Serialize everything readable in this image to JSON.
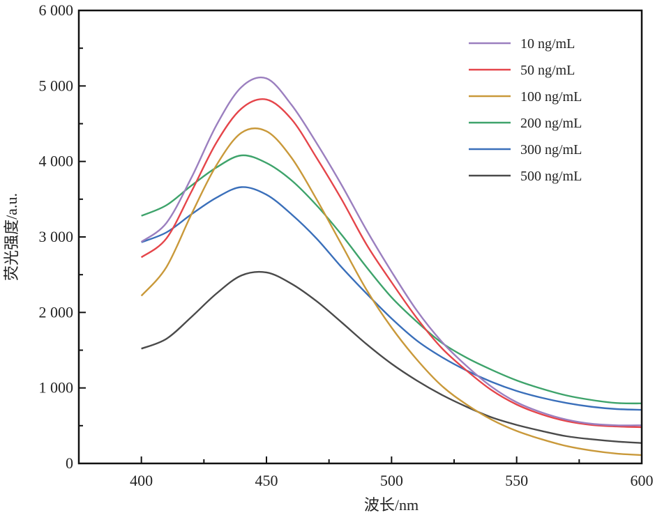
{
  "chart_data": {
    "type": "line",
    "title": "",
    "xlabel": "波长/nm",
    "ylabel": "荧光强度/a.u.",
    "xlim": [
      375,
      600
    ],
    "ylim": [
      0,
      6000
    ],
    "xticks": [
      400,
      450,
      500,
      550,
      600
    ],
    "yticks": [
      0,
      1000,
      2000,
      3000,
      4000,
      5000,
      6000
    ],
    "ytick_labels": [
      "0",
      "1 000",
      "2 000",
      "3 000",
      "4 000",
      "5 000",
      "6 000"
    ],
    "grid": false,
    "legend_position": "top-right",
    "x": [
      400,
      410,
      420,
      430,
      440,
      450,
      460,
      470,
      480,
      490,
      500,
      510,
      520,
      530,
      540,
      550,
      560,
      570,
      580,
      590,
      600
    ],
    "series": [
      {
        "name": "10 ng/mL",
        "color": "#9b7fbf",
        "values": [
          2935,
          3185,
          3785,
          4480,
          4985,
          5100,
          4750,
          4245,
          3690,
          3090,
          2540,
          2030,
          1615,
          1290,
          1015,
          810,
          675,
          580,
          525,
          505,
          505
        ]
      },
      {
        "name": "50 ng/mL",
        "color": "#e5454a",
        "values": [
          2730,
          2980,
          3600,
          4250,
          4700,
          4820,
          4560,
          4050,
          3500,
          2900,
          2400,
          1930,
          1530,
          1230,
          970,
          780,
          650,
          560,
          510,
          490,
          480
        ]
      },
      {
        "name": "100 ng/mL",
        "color": "#c9993a",
        "values": [
          2220,
          2600,
          3300,
          3950,
          4380,
          4400,
          4050,
          3500,
          2900,
          2300,
          1800,
          1380,
          1030,
          780,
          580,
          430,
          320,
          230,
          170,
          130,
          110
        ]
      },
      {
        "name": "200 ng/mL",
        "color": "#3ea36b",
        "values": [
          3280,
          3420,
          3680,
          3920,
          4080,
          3980,
          3750,
          3420,
          3030,
          2600,
          2200,
          1880,
          1600,
          1400,
          1240,
          1100,
          990,
          900,
          840,
          800,
          795
        ]
      },
      {
        "name": "300 ng/mL",
        "color": "#3a6fba",
        "values": [
          2930,
          3060,
          3300,
          3520,
          3660,
          3560,
          3300,
          2980,
          2600,
          2250,
          1920,
          1630,
          1410,
          1230,
          1080,
          960,
          870,
          800,
          750,
          720,
          710
        ]
      },
      {
        "name": "500 ng/mL",
        "color": "#4a4a4a",
        "values": [
          1520,
          1650,
          1940,
          2250,
          2490,
          2530,
          2380,
          2150,
          1870,
          1580,
          1320,
          1100,
          910,
          750,
          610,
          510,
          430,
          360,
          320,
          290,
          270
        ]
      }
    ]
  }
}
